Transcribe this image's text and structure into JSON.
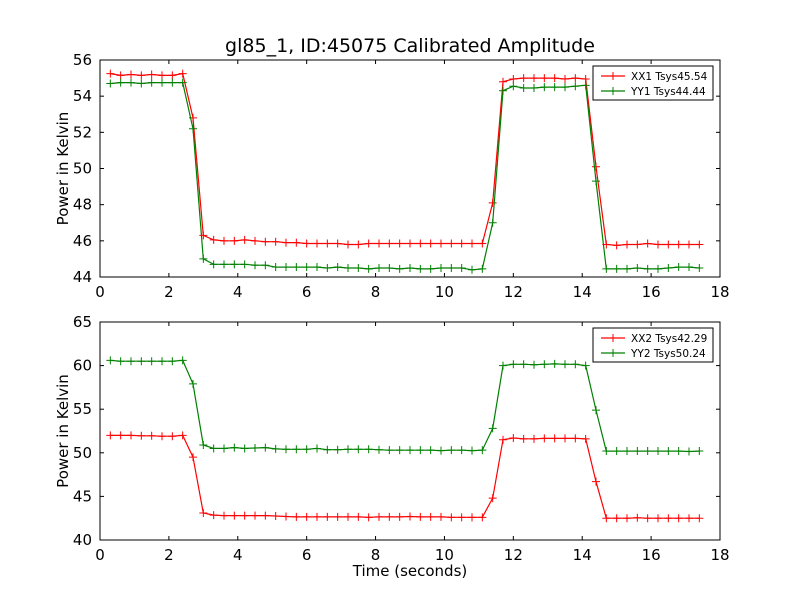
{
  "title": "gl85_1, ID:45075 Calibrated Amplitude",
  "xlabel": "Time (seconds)",
  "chart_data": [
    {
      "type": "line",
      "title": "gl85_1, ID:45075 Calibrated Amplitude",
      "xlabel": "",
      "ylabel": "Power in Kelvin",
      "xlim": [
        0,
        18
      ],
      "ylim": [
        44,
        56
      ],
      "xticks": [
        0,
        2,
        4,
        6,
        8,
        10,
        12,
        14,
        16,
        18
      ],
      "yticks": [
        44,
        46,
        48,
        50,
        52,
        54,
        56
      ],
      "grid": false,
      "legend": "top-right",
      "marker": "+",
      "x": [
        0.3,
        0.6,
        0.9,
        1.2,
        1.5,
        1.8,
        2.1,
        2.4,
        2.7,
        3.0,
        3.3,
        3.6,
        3.9,
        4.2,
        4.5,
        4.8,
        5.1,
        5.4,
        5.7,
        6.0,
        6.3,
        6.6,
        6.9,
        7.2,
        7.5,
        7.8,
        8.1,
        8.4,
        8.7,
        9.0,
        9.3,
        9.6,
        9.9,
        10.2,
        10.5,
        10.8,
        11.1,
        11.4,
        11.7,
        12.0,
        12.3,
        12.6,
        12.9,
        13.2,
        13.5,
        13.8,
        14.1,
        14.4,
        14.7,
        15.0,
        15.3,
        15.6,
        15.9,
        16.2,
        16.5,
        16.8,
        17.1,
        17.4
      ],
      "series": [
        {
          "name": "XX1 Tsys45.54",
          "color": "#ff0000",
          "values": [
            55.25,
            55.15,
            55.2,
            55.15,
            55.2,
            55.15,
            55.15,
            55.25,
            52.8,
            46.3,
            46.05,
            46.0,
            46.0,
            46.05,
            46.0,
            45.95,
            45.95,
            45.9,
            45.9,
            45.85,
            45.85,
            45.85,
            45.85,
            45.8,
            45.8,
            45.85,
            45.85,
            45.85,
            45.85,
            45.85,
            45.85,
            45.85,
            45.85,
            45.85,
            45.85,
            45.85,
            45.85,
            48.1,
            54.8,
            54.95,
            55.0,
            55.0,
            55.0,
            55.0,
            54.95,
            55.0,
            54.95,
            50.1,
            45.8,
            45.75,
            45.8,
            45.8,
            45.85,
            45.8,
            45.8,
            45.8,
            45.8,
            45.8
          ]
        },
        {
          "name": "YY1 Tsys44.44",
          "color": "#008000",
          "values": [
            54.7,
            54.75,
            54.75,
            54.7,
            54.75,
            54.75,
            54.75,
            54.75,
            52.2,
            45.0,
            44.7,
            44.7,
            44.7,
            44.7,
            44.65,
            44.65,
            44.55,
            44.55,
            44.55,
            44.55,
            44.55,
            44.5,
            44.55,
            44.5,
            44.5,
            44.45,
            44.5,
            44.5,
            44.45,
            44.5,
            44.45,
            44.45,
            44.5,
            44.5,
            44.5,
            44.4,
            44.45,
            47.0,
            54.3,
            54.55,
            54.45,
            54.45,
            54.5,
            54.5,
            54.5,
            54.55,
            54.6,
            49.3,
            44.45,
            44.45,
            44.45,
            44.5,
            44.45,
            44.45,
            44.5,
            44.55,
            44.55,
            44.5
          ]
        }
      ]
    },
    {
      "type": "line",
      "title": "",
      "xlabel": "Time (seconds)",
      "ylabel": "Power in Kelvin",
      "xlim": [
        0,
        18
      ],
      "ylim": [
        40,
        65
      ],
      "xticks": [
        0,
        2,
        4,
        6,
        8,
        10,
        12,
        14,
        16,
        18
      ],
      "yticks": [
        40,
        45,
        50,
        55,
        60,
        65
      ],
      "grid": false,
      "legend": "top-right",
      "marker": "+",
      "x": [
        0.3,
        0.6,
        0.9,
        1.2,
        1.5,
        1.8,
        2.1,
        2.4,
        2.7,
        3.0,
        3.3,
        3.6,
        3.9,
        4.2,
        4.5,
        4.8,
        5.1,
        5.4,
        5.7,
        6.0,
        6.3,
        6.6,
        6.9,
        7.2,
        7.5,
        7.8,
        8.1,
        8.4,
        8.7,
        9.0,
        9.3,
        9.6,
        9.9,
        10.2,
        10.5,
        10.8,
        11.1,
        11.4,
        11.7,
        12.0,
        12.3,
        12.6,
        12.9,
        13.2,
        13.5,
        13.8,
        14.1,
        14.4,
        14.7,
        15.0,
        15.3,
        15.6,
        15.9,
        16.2,
        16.5,
        16.8,
        17.1,
        17.4
      ],
      "series": [
        {
          "name": "XX2 Tsys42.29",
          "color": "#ff0000",
          "values": [
            52.0,
            52.0,
            52.0,
            51.95,
            51.95,
            51.9,
            51.9,
            52.0,
            49.5,
            43.1,
            42.85,
            42.8,
            42.8,
            42.8,
            42.8,
            42.8,
            42.75,
            42.7,
            42.65,
            42.65,
            42.65,
            42.65,
            42.65,
            42.65,
            42.65,
            42.6,
            42.65,
            42.65,
            42.65,
            42.7,
            42.65,
            42.65,
            42.65,
            42.6,
            42.6,
            42.6,
            42.6,
            44.8,
            51.5,
            51.7,
            51.6,
            51.6,
            51.65,
            51.65,
            51.65,
            51.65,
            51.6,
            46.7,
            42.5,
            42.5,
            42.5,
            42.55,
            42.5,
            42.5,
            42.5,
            42.5,
            42.5,
            42.5
          ]
        },
        {
          "name": "YY2 Tsys50.24",
          "color": "#008000",
          "values": [
            60.6,
            60.5,
            60.5,
            60.5,
            60.5,
            60.5,
            60.5,
            60.6,
            57.9,
            50.9,
            50.5,
            50.5,
            50.6,
            50.5,
            50.55,
            50.6,
            50.45,
            50.4,
            50.4,
            50.4,
            50.5,
            50.35,
            50.35,
            50.4,
            50.4,
            50.4,
            50.35,
            50.3,
            50.3,
            50.3,
            50.3,
            50.3,
            50.25,
            50.3,
            50.3,
            50.25,
            50.3,
            52.8,
            60.0,
            60.15,
            60.15,
            60.1,
            60.15,
            60.2,
            60.15,
            60.15,
            60.0,
            54.9,
            50.2,
            50.2,
            50.2,
            50.2,
            50.2,
            50.2,
            50.2,
            50.2,
            50.15,
            50.2
          ]
        }
      ]
    }
  ]
}
